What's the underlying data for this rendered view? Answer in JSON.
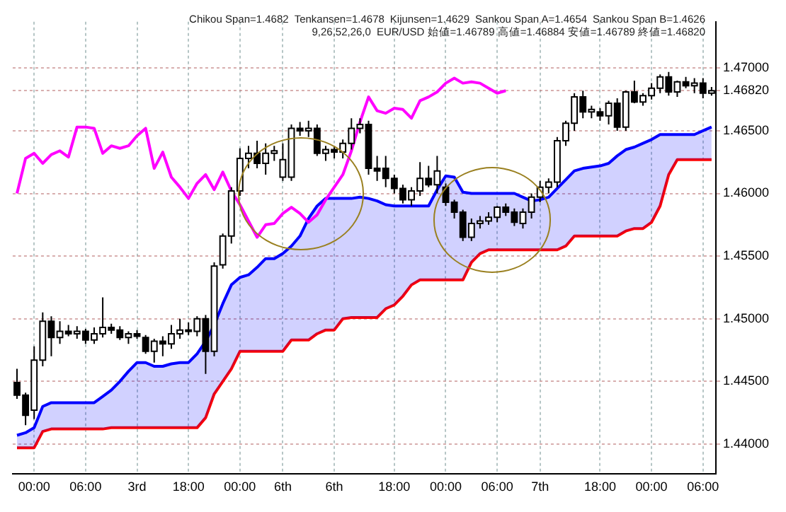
{
  "chart_data": {
    "type": "candlestick",
    "annotations": [
      "Chikou Span=1.4682",
      "Tenkansen=1.4678",
      "Kijunsen=1.4629",
      "Sankou Span A=1.4654",
      "Sankou Span B=1.4626",
      "9,26,52,26,0",
      "EUR/USD 始値=1.46789 高値=1.46884 安値=1.46789 終値=1.46820"
    ],
    "categories": [
      null,
      null,
      "00:00",
      null,
      null,
      null,
      null,
      null,
      "06:00",
      null,
      null,
      null,
      null,
      null,
      "3rd",
      null,
      null,
      null,
      null,
      null,
      "18:00",
      null,
      null,
      null,
      null,
      null,
      "00:00",
      null,
      null,
      null,
      null,
      "6th",
      null,
      null,
      null,
      null,
      null,
      "6th",
      null,
      null,
      null,
      null,
      null,
      null,
      "18:00",
      null,
      null,
      null,
      null,
      null,
      "00:00",
      null,
      null,
      null,
      null,
      null,
      "06:00",
      null,
      null,
      null,
      null,
      "7th",
      null,
      null,
      null,
      null,
      null,
      null,
      "18:00",
      null,
      null,
      null,
      null,
      null,
      "00:00",
      null,
      null,
      null,
      null,
      null,
      "06:00",
      null
    ],
    "ohlc": [
      [
        1.4449,
        1.446,
        1.4436,
        1.4439
      ],
      [
        1.4439,
        1.4441,
        1.4415,
        1.4423
      ],
      [
        1.4427,
        1.4478,
        1.442,
        1.4467
      ],
      [
        1.4467,
        1.4505,
        1.4462,
        1.4498
      ],
      [
        1.4498,
        1.4502,
        1.447,
        1.4485
      ],
      [
        1.4485,
        1.4498,
        1.448,
        1.449
      ],
      [
        1.449,
        1.4495,
        1.4486,
        1.4488
      ],
      [
        1.4488,
        1.4494,
        1.4484,
        1.449
      ],
      [
        1.449,
        1.4492,
        1.448,
        1.4483
      ],
      [
        1.4483,
        1.4493,
        1.448,
        1.4488
      ],
      [
        1.4488,
        1.4517,
        1.4485,
        1.4493
      ],
      [
        1.4493,
        1.4496,
        1.4488,
        1.4491
      ],
      [
        1.4491,
        1.4494,
        1.4483,
        1.4485
      ],
      [
        1.4485,
        1.449,
        1.448,
        1.4488
      ],
      [
        1.4488,
        1.4491,
        1.4484,
        1.4486
      ],
      [
        1.4485,
        1.4487,
        1.4472,
        1.4474
      ],
      [
        1.4474,
        1.4484,
        1.4465,
        1.4482
      ],
      [
        1.4482,
        1.4486,
        1.447,
        1.448
      ],
      [
        1.448,
        1.4495,
        1.4476,
        1.4488
      ],
      [
        1.4488,
        1.45,
        1.4484,
        1.4491
      ],
      [
        1.4491,
        1.4497,
        1.4487,
        1.449
      ],
      [
        1.449,
        1.4502,
        1.4486,
        1.45
      ],
      [
        1.45,
        1.4503,
        1.4456,
        1.4474
      ],
      [
        1.4474,
        1.4545,
        1.447,
        1.4542
      ],
      [
        1.4543,
        1.4568,
        1.454,
        1.4566
      ],
      [
        1.4566,
        1.4605,
        1.456,
        1.4602
      ],
      [
        1.4602,
        1.4636,
        1.4598,
        1.4628
      ],
      [
        1.4628,
        1.4638,
        1.462,
        1.4632
      ],
      [
        1.4632,
        1.4642,
        1.462,
        1.4624
      ],
      [
        1.4624,
        1.464,
        1.4615,
        1.4632
      ],
      [
        1.4632,
        1.4638,
        1.4626,
        1.4634
      ],
      [
        1.4613,
        1.464,
        1.461,
        1.4627
      ],
      [
        1.4613,
        1.4655,
        1.461,
        1.4652
      ],
      [
        1.4652,
        1.4657,
        1.4646,
        1.465
      ],
      [
        1.465,
        1.4658,
        1.4645,
        1.4652
      ],
      [
        1.4652,
        1.4655,
        1.463,
        1.4632
      ],
      [
        1.4632,
        1.4638,
        1.4626,
        1.4635
      ],
      [
        1.4635,
        1.4638,
        1.4628,
        1.4633
      ],
      [
        1.4633,
        1.4643,
        1.4628,
        1.464
      ],
      [
        1.464,
        1.466,
        1.4635,
        1.4652
      ],
      [
        1.4652,
        1.466,
        1.4648,
        1.4655
      ],
      [
        1.4655,
        1.4658,
        1.4615,
        1.462
      ],
      [
        1.462,
        1.463,
        1.461,
        1.4618
      ],
      [
        1.462,
        1.463,
        1.4605,
        1.4612
      ],
      [
        1.4612,
        1.4615,
        1.46,
        1.4604
      ],
      [
        1.4604,
        1.4607,
        1.4592,
        1.4595
      ],
      [
        1.4595,
        1.4605,
        1.459,
        1.4602
      ],
      [
        1.4602,
        1.4625,
        1.4598,
        1.4612
      ],
      [
        1.4612,
        1.4622,
        1.4605,
        1.4607
      ],
      [
        1.4607,
        1.463,
        1.46,
        1.4618
      ],
      [
        1.4605,
        1.4608,
        1.459,
        1.4593
      ],
      [
        1.4593,
        1.4595,
        1.458,
        1.4585
      ],
      [
        1.4585,
        1.4587,
        1.4562,
        1.4565
      ],
      [
        1.4565,
        1.458,
        1.4562,
        1.4576
      ],
      [
        1.4576,
        1.4582,
        1.4572,
        1.4578
      ],
      [
        1.4578,
        1.4585,
        1.4575,
        1.4581
      ],
      [
        1.4581,
        1.459,
        1.4577,
        1.4589
      ],
      [
        1.4589,
        1.4592,
        1.4582,
        1.4585
      ],
      [
        1.4585,
        1.4588,
        1.4574,
        1.4577
      ],
      [
        1.4576,
        1.4588,
        1.4572,
        1.4585
      ],
      [
        1.4585,
        1.46,
        1.458,
        1.4597
      ],
      [
        1.4597,
        1.461,
        1.4593,
        1.4605
      ],
      [
        1.4605,
        1.4612,
        1.46,
        1.4609
      ],
      [
        1.4609,
        1.4645,
        1.4605,
        1.4642
      ],
      [
        1.4642,
        1.4658,
        1.4638,
        1.4656
      ],
      [
        1.4656,
        1.468,
        1.465,
        1.4677
      ],
      [
        1.4677,
        1.4682,
        1.466,
        1.4665
      ],
      [
        1.4665,
        1.467,
        1.466,
        1.4667
      ],
      [
        1.4665,
        1.4668,
        1.4658,
        1.4662
      ],
      [
        1.4662,
        1.4674,
        1.4655,
        1.4672
      ],
      [
        1.4672,
        1.4676,
        1.465,
        1.4653
      ],
      [
        1.4653,
        1.4682,
        1.465,
        1.4681
      ],
      [
        1.4681,
        1.469,
        1.4672,
        1.4673
      ],
      [
        1.4673,
        1.468,
        1.467,
        1.4678
      ],
      [
        1.4678,
        1.4688,
        1.4675,
        1.4684
      ],
      [
        1.4684,
        1.4695,
        1.468,
        1.4693
      ],
      [
        1.4693,
        1.4697,
        1.4678,
        1.4681
      ],
      [
        1.4681,
        1.469,
        1.4677,
        1.4689
      ],
      [
        1.4689,
        1.4693,
        1.4684,
        1.4686
      ],
      [
        1.4686,
        1.4692,
        1.468,
        1.4688
      ],
      [
        1.4688,
        1.4692,
        1.4676,
        1.468
      ],
      [
        1.468,
        1.4685,
        1.4678,
        1.4682
      ]
    ],
    "series": [
      {
        "type": "line",
        "color": "#ff00ff",
        "values": [
          1.46,
          1.4628,
          1.4632,
          1.4624,
          1.4631,
          1.4634,
          1.4629,
          1.4653,
          1.4653,
          1.4652,
          1.4632,
          1.4638,
          1.4636,
          1.4638,
          1.4646,
          1.4652,
          1.462,
          1.4633,
          1.4613,
          1.4605,
          1.4596,
          1.4608,
          1.4615,
          1.4603,
          1.4617,
          1.4602,
          1.4591,
          1.4578,
          1.4565,
          1.4575,
          1.4576,
          1.4584,
          1.4589,
          1.4584,
          1.4577,
          1.4583,
          1.4595,
          1.4605,
          1.4615,
          1.4634,
          1.4657,
          1.4677,
          1.4666,
          1.4664,
          1.4668,
          1.4667,
          1.466,
          1.4674,
          1.4677,
          1.4681,
          1.4688,
          1.4692,
          1.4688,
          1.4689,
          1.4688,
          1.4684,
          1.468,
          1.4682,
          null,
          null,
          null,
          null,
          null,
          null,
          null,
          null,
          null,
          null,
          null,
          null,
          null,
          null,
          null,
          null,
          null,
          null,
          null,
          null,
          null,
          null,
          null,
          null
        ]
      },
      {
        "type": "area",
        "color": "#0000ff",
        "values": [
          1.4407,
          1.4409,
          1.4413,
          1.443,
          1.4433,
          1.4433,
          1.4433,
          1.4433,
          1.4433,
          1.4433,
          1.4438,
          1.4443,
          1.445,
          1.4458,
          1.4465,
          1.4465,
          1.4462,
          1.4462,
          1.4464,
          1.4465,
          1.4465,
          1.4472,
          1.4482,
          1.4495,
          1.4512,
          1.4527,
          1.4533,
          1.4535,
          1.4541,
          1.4548,
          1.4548,
          1.4552,
          1.4558,
          1.4566,
          1.458,
          1.459,
          1.4596,
          1.4596,
          1.4596,
          1.4596,
          1.4597,
          1.4596,
          1.4594,
          1.4591,
          1.459,
          1.459,
          1.459,
          1.459,
          1.459,
          1.4603,
          1.4614,
          1.4613,
          1.4601,
          1.46,
          1.46,
          1.46,
          1.46,
          1.46,
          1.46,
          1.4597,
          1.4594,
          1.4595,
          1.4597,
          1.4604,
          1.4611,
          1.4618,
          1.462,
          1.4621,
          1.4622,
          1.4624,
          1.463,
          1.4635,
          1.4637,
          1.464,
          1.4643,
          1.4647,
          1.4647,
          1.4647,
          1.4647,
          1.4647,
          1.465,
          1.4653
        ]
      },
      {
        "type": "line",
        "color": "#ff0000",
        "values": [
          1.4397,
          1.4397,
          1.4397,
          1.441,
          1.4412,
          1.4412,
          1.4412,
          1.4412,
          1.4412,
          1.4412,
          1.4412,
          1.4413,
          1.4413,
          1.4413,
          1.4413,
          1.4413,
          1.4413,
          1.4413,
          1.4413,
          1.4413,
          1.4413,
          1.4413,
          1.4421,
          1.444,
          1.445,
          1.446,
          1.4474,
          1.4474,
          1.4474,
          1.4474,
          1.4474,
          1.4474,
          1.4483,
          1.4483,
          1.4483,
          1.4488,
          1.4491,
          1.4491,
          1.45,
          1.4501,
          1.4501,
          1.4501,
          1.4501,
          1.4508,
          1.4511,
          1.4518,
          1.4527,
          1.4531,
          1.4531,
          1.4531,
          1.4531,
          1.4531,
          1.4531,
          1.4545,
          1.4552,
          1.4555,
          1.4555,
          1.4555,
          1.4555,
          1.4555,
          1.4555,
          1.4555,
          1.4555,
          1.4555,
          1.4558,
          1.4566,
          1.4566,
          1.4566,
          1.4566,
          1.4566,
          1.4566,
          1.457,
          1.4572,
          1.4572,
          1.4577,
          1.459,
          1.4615,
          1.4627,
          1.4627,
          1.4627,
          1.4627,
          1.4627
        ]
      }
    ],
    "ylim": [
      1.4376,
      1.4737
    ],
    "yticks": [
      {
        "value": 1.44,
        "label": "1.44000"
      },
      {
        "value": 1.445,
        "label": "1.44500"
      },
      {
        "value": 1.45,
        "label": "1.45000"
      },
      {
        "value": 1.455,
        "label": "1.45500"
      },
      {
        "value": 1.46,
        "label": "1.46000"
      },
      {
        "value": 1.465,
        "label": "1.46500"
      },
      {
        "value": 1.4682,
        "label": "1.46820"
      },
      {
        "value": 1.47,
        "label": "1.47000"
      }
    ],
    "grid": true,
    "legend": false,
    "marker": "none",
    "line_style": "solid"
  }
}
